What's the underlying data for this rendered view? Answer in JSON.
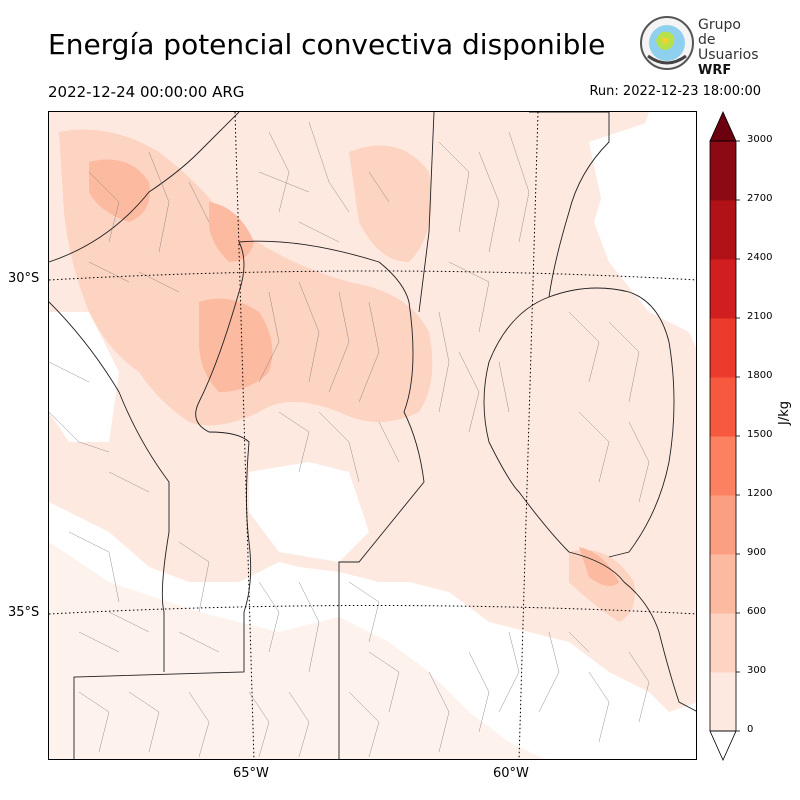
{
  "header": {
    "title": "Energía potencial convectiva disponible",
    "valid_time": "2022-12-24 00:00:00 ARG",
    "run_time": "Run: 2022-12-23 18:00:00"
  },
  "logo": {
    "line1": "Grupo de",
    "line2": "Usuarios",
    "line3": "WRF"
  },
  "map": {
    "lat_labels": [
      "30°S",
      "35°S"
    ],
    "lon_labels": [
      "65°W",
      "60°W"
    ],
    "background_color": "#ffffff",
    "border_color": "#000000"
  },
  "colorbar": {
    "unit": "J/kg",
    "ticks": [
      "0",
      "300",
      "600",
      "900",
      "1200",
      "1500",
      "1800",
      "2100",
      "2400",
      "2700",
      "3000"
    ],
    "colors": [
      "#fee9e1",
      "#fdd3c1",
      "#fcbaa0",
      "#fc9f80",
      "#fb8161",
      "#f7593f",
      "#ec3a2d",
      "#d11f1f",
      "#b01217",
      "#8c0a13",
      "#6b010e"
    ],
    "extend": "both"
  }
}
